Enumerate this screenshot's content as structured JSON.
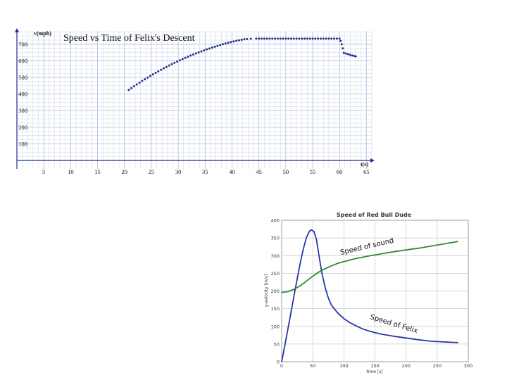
{
  "chart_data": [
    {
      "type": "scatter",
      "title": "Speed vs Time of Felix's Descent",
      "ylabel": "v(mph)",
      "xlabel": "t(s)",
      "xlim": [
        0,
        66
      ],
      "ylim": [
        0,
        780
      ],
      "xticks": [
        5,
        10,
        15,
        20,
        25,
        30,
        35,
        40,
        45,
        50,
        55,
        60,
        65
      ],
      "yticks": [
        100,
        200,
        300,
        400,
        500,
        600,
        700
      ],
      "grid": true,
      "colors": {
        "points": "#1f2d8a",
        "grid": "#b7c3e8",
        "axis": "#1f2d8a"
      },
      "series": [
        {
          "x": [
            20.8,
            21.3,
            21.8,
            22.3,
            22.8,
            23.3,
            23.8,
            24.3,
            24.8,
            25.3,
            25.8,
            26.3,
            26.8,
            27.3,
            27.8,
            28.3,
            28.8,
            29.3,
            29.8,
            30.3,
            30.8,
            31.3,
            31.8,
            32.3,
            32.8,
            33.3,
            33.8,
            34.3,
            34.8,
            35.3,
            35.8,
            36.3,
            36.8,
            37.3,
            37.8,
            38.3,
            38.8,
            39.3,
            39.8,
            40.3,
            40.8,
            41.3,
            41.8,
            42.3,
            42.8,
            43.5,
            44.5,
            45.0,
            45.5,
            46.0,
            46.5,
            47.0,
            47.5,
            48.0,
            48.5,
            49.0,
            49.5,
            50.0,
            50.5,
            51.0,
            51.5,
            52.0,
            52.5,
            53.0,
            53.5,
            54.0,
            54.5,
            55.0,
            55.5,
            56.0,
            56.5,
            57.0,
            57.5,
            58.0,
            58.5,
            59.0,
            59.5,
            60.0,
            60.2,
            60.4,
            60.6,
            60.8,
            61.2,
            61.6,
            62.0,
            62.4,
            62.8,
            63.0
          ],
          "values": [
            425,
            436,
            447,
            458,
            468,
            479,
            489,
            499,
            509,
            518,
            528,
            537,
            546,
            555,
            563,
            572,
            580,
            588,
            596,
            603,
            611,
            618,
            625,
            632,
            638,
            645,
            651,
            657,
            663,
            669,
            674,
            680,
            685,
            690,
            695,
            700,
            705,
            709,
            713,
            717,
            721,
            724,
            727,
            730,
            732,
            733,
            734,
            734,
            734,
            734,
            734,
            734,
            734,
            734,
            734,
            734,
            734,
            734,
            734,
            734,
            734,
            734,
            734,
            734,
            734,
            734,
            734,
            734,
            734,
            734,
            734,
            734,
            734,
            734,
            734,
            734,
            734,
            734,
            720,
            700,
            675,
            648,
            644,
            640,
            636,
            632,
            629,
            627
          ]
        }
      ]
    },
    {
      "type": "line",
      "title": "Speed of Red Bull Dude",
      "ylabel": "y-velocity [m/s]",
      "xlabel": "time [s]",
      "xlim": [
        0,
        300
      ],
      "ylim": [
        0,
        400
      ],
      "xticks": [
        0,
        50,
        100,
        150,
        200,
        250,
        300
      ],
      "yticks": [
        0,
        50,
        100,
        150,
        200,
        250,
        300,
        350,
        400
      ],
      "grid": true,
      "annotations": [
        "Speed of sound",
        "Speed of Felix"
      ],
      "colors": {
        "felix": "#2638a8",
        "sound": "#2f8a2f",
        "grid": "#c8c8c8"
      },
      "series": [
        {
          "name": "Speed of Felix",
          "x": [
            0,
            5,
            10,
            15,
            20,
            25,
            30,
            35,
            40,
            45,
            48,
            52,
            56,
            60,
            65,
            70,
            75,
            80,
            90,
            100,
            110,
            120,
            130,
            140,
            150,
            160,
            180,
            200,
            220,
            240,
            260,
            283
          ],
          "values": [
            0,
            45,
            92,
            140,
            188,
            235,
            280,
            320,
            352,
            370,
            373,
            368,
            345,
            300,
            248,
            210,
            180,
            160,
            138,
            122,
            110,
            101,
            93,
            87,
            82,
            78,
            72,
            67,
            62,
            58,
            56,
            54
          ]
        },
        {
          "name": "Speed of sound",
          "x": [
            0,
            10,
            20,
            30,
            40,
            50,
            60,
            70,
            80,
            90,
            100,
            120,
            140,
            160,
            180,
            200,
            220,
            240,
            260,
            283
          ],
          "values": [
            196,
            198,
            205,
            215,
            228,
            242,
            254,
            263,
            271,
            278,
            283,
            292,
            299,
            305,
            311,
            316,
            321,
            327,
            333,
            340
          ]
        }
      ]
    }
  ]
}
